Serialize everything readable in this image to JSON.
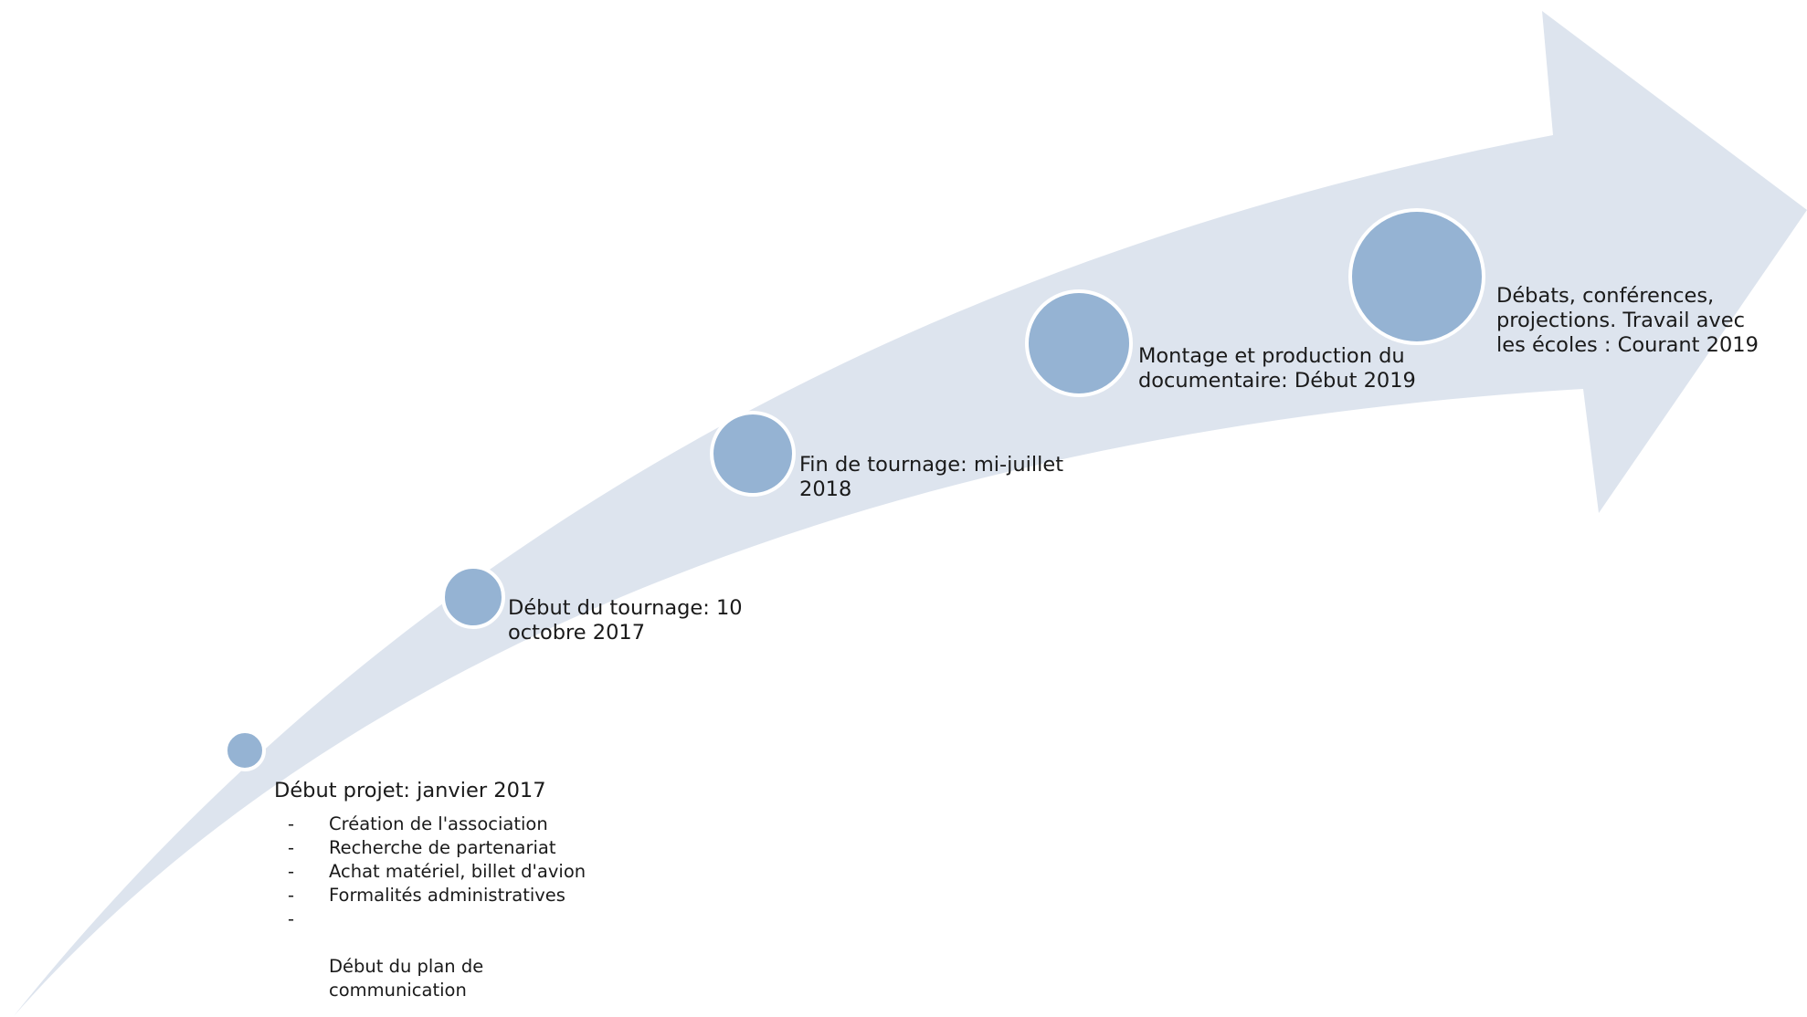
{
  "colors": {
    "arrow_fill": "#dde4ee",
    "node_fill": "#95b3d3",
    "node_stroke": "#ffffff",
    "text": "#1a1a1a"
  },
  "milestones": [
    {
      "id": "m1",
      "label": "Début projet: janvier 2017"
    },
    {
      "id": "m2",
      "label": "Début du tournage: 10\noctobre 2017"
    },
    {
      "id": "m3",
      "label": "Fin de tournage: mi-juillet\n2018"
    },
    {
      "id": "m4",
      "label": "Montage et production du\ndocumentaire: Début 2019"
    },
    {
      "id": "m5",
      "label": "Débats, conférences,\nprojections. Travail avec\nles écoles : Courant 2019"
    }
  ],
  "tasks": {
    "bullet": "-",
    "items": [
      "Création de l'association",
      "Recherche de partenariat",
      "Achat matériel, billet d'avion",
      "Formalités administratives",
      "Début du plan de\ncommunication"
    ]
  }
}
